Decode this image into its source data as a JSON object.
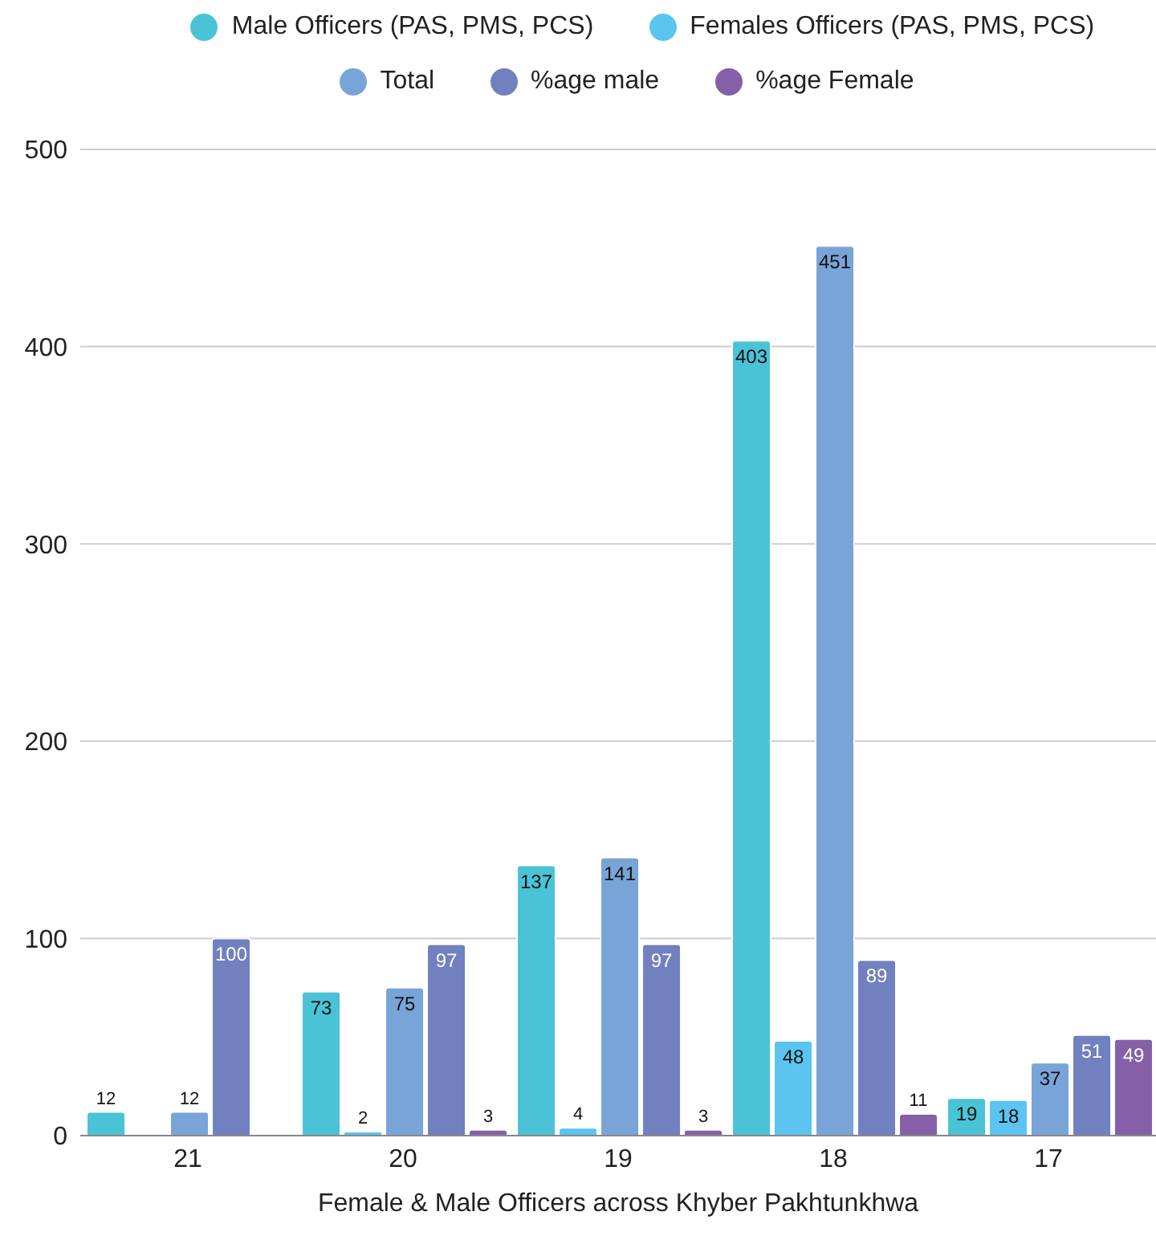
{
  "chart_data": {
    "type": "bar",
    "xlabel": "Female & Male Officers across Khyber Pakhtunkhwa",
    "categories": [
      "21",
      "20",
      "19",
      "18",
      "17"
    ],
    "series": [
      {
        "name": "Male Officers (PAS, PMS, PCS)",
        "color": "#4ac3d6",
        "values": [
          12,
          73,
          137,
          403,
          19
        ]
      },
      {
        "name": "Females Officers (PAS, PMS, PCS)",
        "color": "#5bc4f0",
        "values": [
          null,
          2,
          4,
          48,
          18
        ]
      },
      {
        "name": "Total",
        "color": "#78a4d8",
        "values": [
          12,
          75,
          141,
          451,
          37
        ]
      },
      {
        "name": "%age male",
        "color": "#7180be",
        "values": [
          100,
          97,
          97,
          89,
          51
        ]
      },
      {
        "name": "%age Female",
        "color": "#8560a8",
        "values": [
          null,
          3,
          3,
          11,
          49
        ]
      }
    ],
    "ylim": [
      0,
      500
    ],
    "yticks": [
      0,
      100,
      200,
      300,
      400,
      500
    ],
    "grid": "y",
    "legend": "top",
    "data_labels": true
  }
}
